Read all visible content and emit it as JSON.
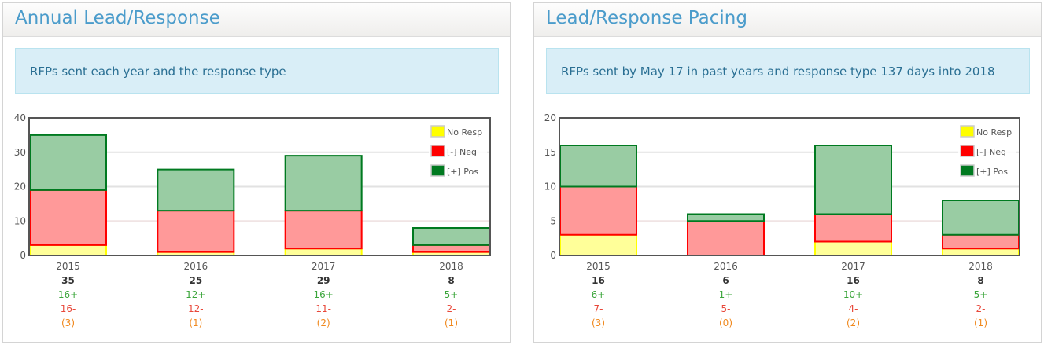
{
  "panels": [
    {
      "title": "Annual Lead/Response",
      "info": "RFPs sent each year and the response type"
    },
    {
      "title": "Lead/Response Pacing",
      "info": "RFPs sent by May 17 in past years and response type 137 days into 2018"
    }
  ],
  "chart_data": [
    {
      "type": "bar",
      "stacked": true,
      "categories": [
        "2015",
        "2016",
        "2017",
        "2018"
      ],
      "ylim": [
        0,
        40
      ],
      "yticks": [
        0,
        10,
        20,
        30,
        40
      ],
      "legend": "top-right",
      "series": [
        {
          "name": "No Resp",
          "color": "#ffff00",
          "values": [
            3,
            1,
            2,
            1
          ]
        },
        {
          "name": "[-] Neg",
          "color": "#ff0000",
          "values": [
            16,
            12,
            11,
            2
          ]
        },
        {
          "name": "[+] Pos",
          "color": "#007a20",
          "values": [
            16,
            12,
            16,
            5
          ]
        }
      ],
      "totals": [
        "35",
        "25",
        "29",
        "8"
      ],
      "pos_labels": [
        "16+",
        "12+",
        "16+",
        "5+"
      ],
      "neg_labels": [
        "16-",
        "12-",
        "11-",
        "2-"
      ],
      "noresp_labels": [
        "(3)",
        "(1)",
        "(2)",
        "(1)"
      ]
    },
    {
      "type": "bar",
      "stacked": true,
      "categories": [
        "2015",
        "2016",
        "2017",
        "2018"
      ],
      "ylim": [
        0,
        20
      ],
      "yticks": [
        0,
        5,
        10,
        15,
        20
      ],
      "legend": "top-right",
      "series": [
        {
          "name": "No Resp",
          "color": "#ffff00",
          "values": [
            3,
            0,
            2,
            1
          ]
        },
        {
          "name": "[-] Neg",
          "color": "#ff0000",
          "values": [
            7,
            5,
            4,
            2
          ]
        },
        {
          "name": "[+] Pos",
          "color": "#007a20",
          "values": [
            6,
            1,
            10,
            5
          ]
        }
      ],
      "totals": [
        "16",
        "6",
        "16",
        "8"
      ],
      "pos_labels": [
        "6+",
        "1+",
        "10+",
        "5+"
      ],
      "neg_labels": [
        "7-",
        "5-",
        "4-",
        "2-"
      ],
      "noresp_labels": [
        "(3)",
        "(0)",
        "(2)",
        "(1)"
      ]
    }
  ]
}
